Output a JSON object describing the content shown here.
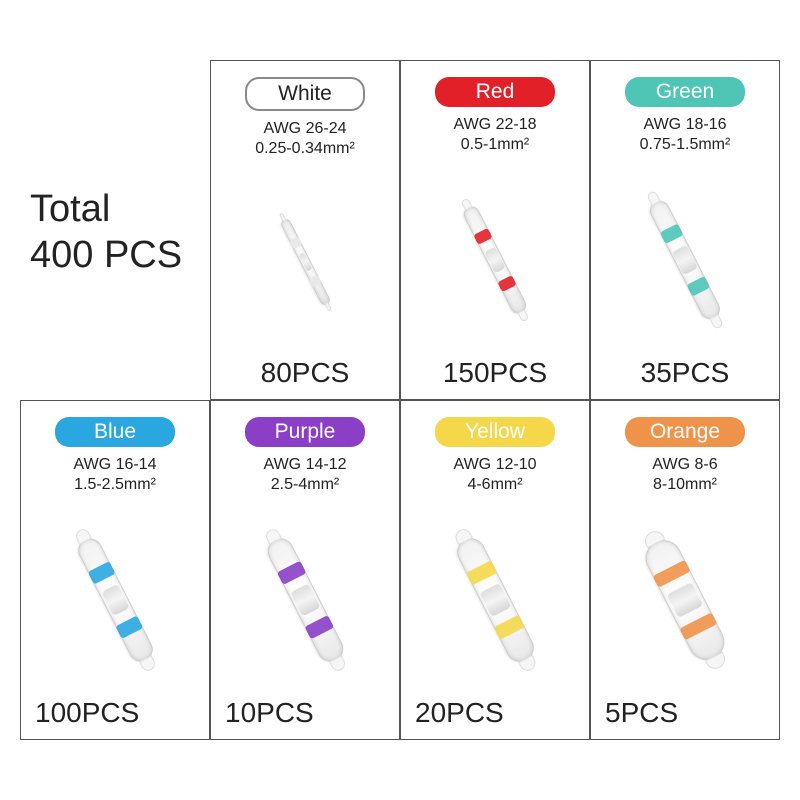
{
  "title": {
    "line1": "Total",
    "line2": "400 PCS"
  },
  "items": [
    {
      "name": "White",
      "pill_bg": "#ffffff",
      "pill_text": "#222222",
      "pill_outline": true,
      "band_color": "#e8e8e8",
      "awg": "AWG 26-24",
      "mm": "0.25-0.34mm²",
      "count": "80PCS",
      "count_align": "center",
      "tube_w": 95,
      "tube_h": 10
    },
    {
      "name": "Red",
      "pill_bg": "#e22028",
      "pill_text": "#ffffff",
      "pill_outline": false,
      "band_color": "#e22028",
      "awg": "AWG 22-18",
      "mm": "0.5-1mm²",
      "count": "150PCS",
      "count_align": "center",
      "tube_w": 118,
      "tube_h": 16
    },
    {
      "name": "Green",
      "pill_bg": "#4fc5b6",
      "pill_text": "#ffffff",
      "pill_outline": false,
      "band_color": "#4fc5b6",
      "awg": "AWG 18-16",
      "mm": "0.75-1.5mm²",
      "count": "35PCS",
      "count_align": "center",
      "tube_w": 130,
      "tube_h": 20
    },
    {
      "name": "Blue",
      "pill_bg": "#2aa6e1",
      "pill_text": "#ffffff",
      "pill_outline": false,
      "band_color": "#2aa6e1",
      "awg": "AWG 16-14",
      "mm": "1.5-2.5mm²",
      "count": "100PCS",
      "count_align": "left",
      "tube_w": 135,
      "tube_h": 24
    },
    {
      "name": "Purple",
      "pill_bg": "#8a3fc6",
      "pill_text": "#ffffff",
      "pill_outline": false,
      "band_color": "#8a3fc6",
      "awg": "AWG 14-12",
      "mm": "2.5-4mm²",
      "count": "10PCS",
      "count_align": "left",
      "tube_w": 135,
      "tube_h": 26
    },
    {
      "name": "Yellow",
      "pill_bg": "#f4d84a",
      "pill_text": "#ffffff",
      "pill_outline": false,
      "band_color": "#f4d84a",
      "awg": "AWG 12-10",
      "mm": "4-6mm²",
      "count": "20PCS",
      "count_align": "left",
      "tube_w": 135,
      "tube_h": 28
    },
    {
      "name": "Orange",
      "pill_bg": "#f0934a",
      "pill_text": "#ffffff",
      "pill_outline": false,
      "band_color": "#f0934a",
      "awg": "AWG 8-6",
      "mm": "8-10mm²",
      "count": "5PCS",
      "count_align": "left",
      "tube_w": 130,
      "tube_h": 36
    }
  ],
  "layout": {
    "grid_border_color": "#555555",
    "background_color": "#ffffff",
    "pill_fontsize": 21,
    "spec_fontsize": 16,
    "count_fontsize": 28,
    "title_fontsize": 38
  }
}
